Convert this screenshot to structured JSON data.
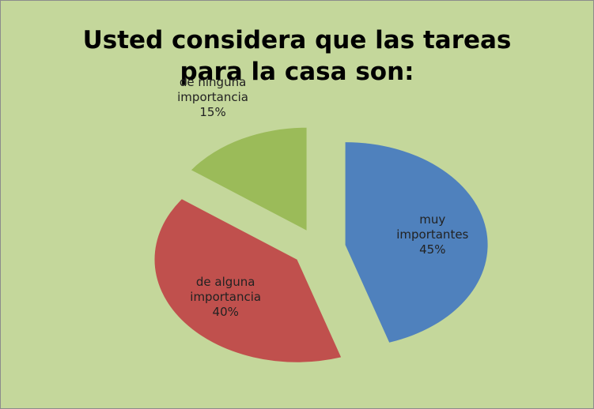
{
  "chart_data": {
    "type": "pie",
    "title": "Usted considera que las tareas para la casa son:",
    "categories": [
      "muy importantes",
      "de alguna importancia",
      "de ninguna importancia"
    ],
    "values": [
      45,
      40,
      15
    ],
    "value_labels": [
      "45%",
      "40%",
      "15%"
    ],
    "colors": [
      "#4f81bd",
      "#c0504d",
      "#9bbb59"
    ],
    "exploded": true
  }
}
